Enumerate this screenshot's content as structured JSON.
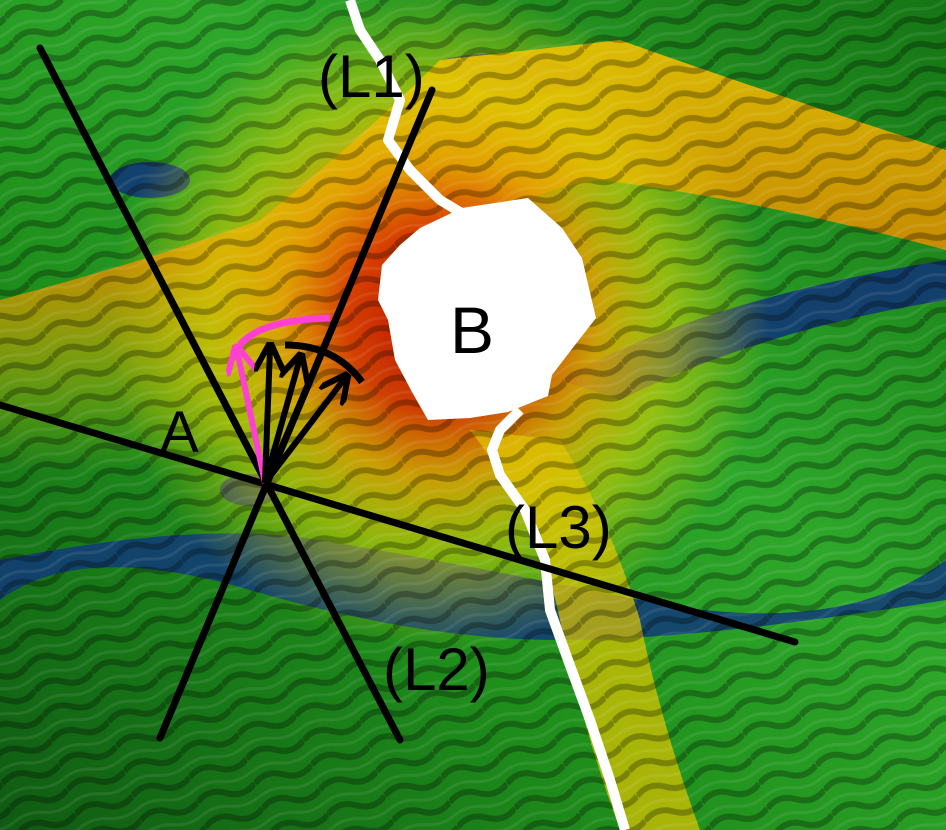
{
  "labels": {
    "point_a": "A",
    "obstacle_b": "B",
    "line_1": "(L1)",
    "line_2": "(L2)",
    "line_3": "(L3)"
  },
  "colors": {
    "field_low": "#0a2a7a",
    "field_mid": "#1f9a1f",
    "field_high": "#f0d800",
    "field_peak": "#c81800",
    "lines": "#000000",
    "highlight_arrow": "#ff40d0",
    "obstacle": "#ffffff"
  }
}
